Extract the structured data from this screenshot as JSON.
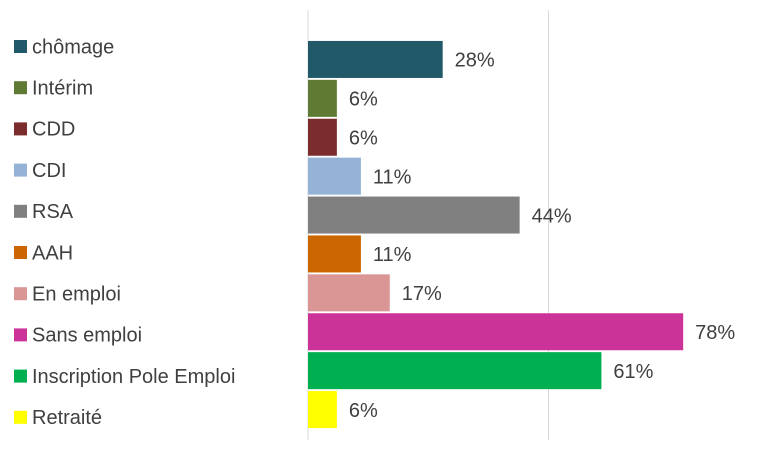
{
  "chart_data": {
    "type": "barh",
    "categories": [
      "chômage",
      "Intérim",
      "CDD",
      "CDI",
      "RSA",
      "AAH",
      "En emploi",
      "Sans emploi",
      "Inscription Pole Emploi",
      "Retraité"
    ],
    "values": [
      28,
      6,
      6,
      11,
      44,
      11,
      17,
      78,
      61,
      6
    ],
    "value_labels": [
      "28%",
      "6%",
      "6%",
      "11%",
      "44%",
      "11%",
      "17%",
      "78%",
      "61%",
      "6%"
    ],
    "colors": [
      "#215968",
      "#5f7a32",
      "#7b2c2c",
      "#95b3d7",
      "#808080",
      "#cc6600",
      "#d99694",
      "#cc3399",
      "#00b050",
      "#ffff00"
    ],
    "xlim": [
      0,
      100
    ],
    "xticks": [
      0,
      50
    ],
    "grid": true,
    "legend": "left"
  }
}
